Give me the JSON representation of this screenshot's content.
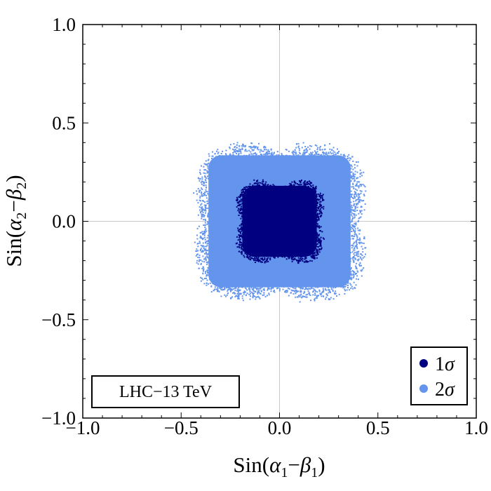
{
  "chart_data": {
    "type": "scatter",
    "title": "",
    "xlabel": {
      "prefix": "Sin(",
      "sym1": "α",
      "sub1": "1",
      "mid": "−",
      "sym2": "β",
      "sub2": "1",
      "suffix": ")"
    },
    "ylabel": {
      "prefix": "Sin(",
      "sym1": "α",
      "sub1": "2",
      "mid": "−",
      "sym2": "β",
      "sub2": "2",
      "suffix": ")"
    },
    "xlim": [
      -1.0,
      1.0
    ],
    "ylim": [
      -1.0,
      1.0
    ],
    "xticks": [
      -1.0,
      -0.5,
      0.0,
      0.5,
      1.0
    ],
    "yticks": [
      -1.0,
      -0.5,
      0.0,
      0.5,
      1.0
    ],
    "xtick_labels": [
      "−1.0",
      "−0.5",
      "0.0",
      "0.5",
      "1.0"
    ],
    "ytick_labels": [
      "−1.0",
      "−0.5",
      "0.0",
      "0.5",
      "1.0"
    ],
    "zero_lines": true,
    "grid": false,
    "legend_position": "bottom-right",
    "annotation": "LHC−13 TeV",
    "series": [
      {
        "name_main": "2",
        "name_sym": "σ",
        "color": "#6495ED",
        "region": {
          "center": [
            0.0,
            0.0
          ],
          "half_width_x": 0.42,
          "half_width_y": 0.39,
          "corner_bulge": 0.06,
          "waist": 0.05
        }
      },
      {
        "name_main": "1",
        "name_sym": "σ",
        "color": "#000080",
        "region": {
          "center": [
            0.0,
            0.0
          ],
          "half_width_x": 0.22,
          "half_width_y": 0.21,
          "corner_bulge": 0.03,
          "waist": 0.035
        }
      }
    ]
  }
}
